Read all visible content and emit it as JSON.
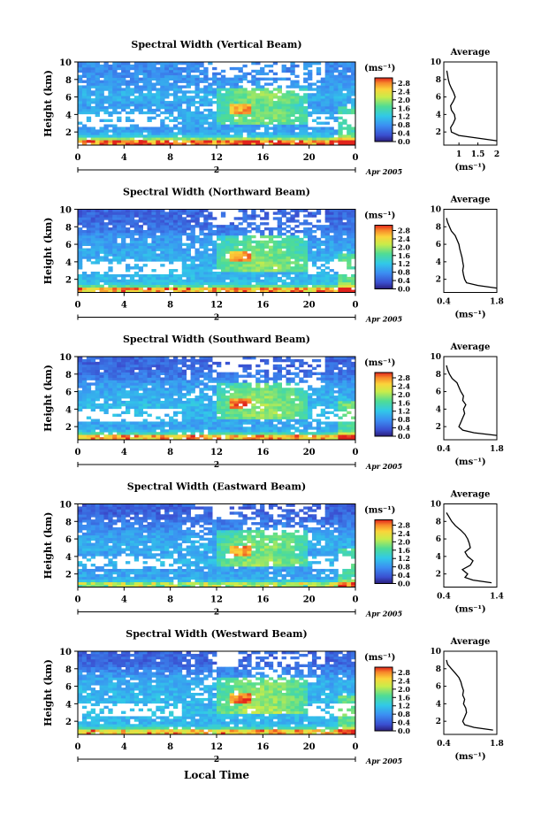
{
  "figure": {
    "xlabel": "Local Time",
    "date_label": "Apr 2005",
    "day_marker": "2",
    "ylabel": "Height (km)",
    "colorbar_unit": "(ms⁻¹)",
    "average_title": "Average",
    "average_xlabel": "(ms⁻¹)",
    "colors": {
      "background": "#ffffff",
      "ink": "#000000",
      "no_data": "#ffffff"
    }
  },
  "chart_data": [
    {
      "type": "heatmap",
      "title": "Spectral Width (Vertical Beam)",
      "xlabel": "",
      "ylabel": "Height (km)",
      "xticks": [
        "0",
        "4",
        "8",
        "12",
        "16",
        "20",
        "0"
      ],
      "xlim": [
        0,
        24
      ],
      "yticks": [
        "2",
        "4",
        "6",
        "8",
        "10"
      ],
      "ylim": [
        0.5,
        10
      ],
      "colorbar": {
        "unit": "(ms⁻¹)",
        "ticks": [
          "2.8",
          "2.4",
          "2.0",
          "1.6",
          "1.2",
          "0.8",
          "0.4",
          "0.0"
        ],
        "range": [
          0.0,
          2.8
        ]
      },
      "average_profile": {
        "title": "Average",
        "xlabel": "(ms⁻¹)",
        "xticks": [
          "1",
          "1.5",
          "2"
        ],
        "xlim": [
          0.6,
          2.0
        ],
        "yticks": [
          "2",
          "4",
          "6",
          "8",
          "10"
        ],
        "ylim": [
          0.5,
          10
        ],
        "height_km": [
          1.0,
          1.3,
          1.6,
          2.0,
          2.5,
          3.0,
          3.5,
          4.0,
          4.5,
          5.0,
          5.5,
          6.0,
          6.5,
          7.0,
          7.5,
          8.0,
          8.5,
          9.0
        ],
        "value": [
          2.0,
          1.5,
          1.0,
          0.8,
          0.78,
          0.85,
          0.9,
          0.88,
          0.8,
          0.78,
          0.85,
          0.9,
          0.86,
          0.8,
          0.75,
          0.72,
          0.7,
          0.68
        ]
      }
    },
    {
      "type": "heatmap",
      "title": "Spectral Width (Northward Beam)",
      "xlabel": "",
      "ylabel": "Height (km)",
      "xticks": [
        "0",
        "4",
        "8",
        "12",
        "16",
        "20",
        "0"
      ],
      "xlim": [
        0,
        24
      ],
      "yticks": [
        "2",
        "4",
        "6",
        "8",
        "10"
      ],
      "ylim": [
        0.5,
        10
      ],
      "colorbar": {
        "unit": "(ms⁻¹)",
        "ticks": [
          "2.8",
          "2.4",
          "2.0",
          "1.6",
          "1.2",
          "0.8",
          "0.4",
          "0.0"
        ],
        "range": [
          0.0,
          2.8
        ]
      },
      "average_profile": {
        "title": "Average",
        "xlabel": "(ms⁻¹)",
        "xticks": [
          "0.4",
          "1.8"
        ],
        "xlim": [
          0.4,
          1.8
        ],
        "yticks": [
          "2",
          "4",
          "6",
          "8",
          "10"
        ],
        "ylim": [
          0.5,
          10
        ],
        "height_km": [
          1.0,
          1.3,
          1.6,
          2.0,
          2.5,
          3.0,
          3.5,
          4.0,
          4.5,
          5.0,
          5.5,
          6.0,
          6.5,
          7.0,
          7.5,
          8.0,
          8.5,
          9.0
        ],
        "value": [
          1.8,
          1.3,
          1.0,
          0.95,
          0.92,
          0.9,
          0.92,
          0.9,
          0.88,
          0.85,
          0.82,
          0.8,
          0.75,
          0.7,
          0.6,
          0.55,
          0.5,
          0.47
        ]
      }
    },
    {
      "type": "heatmap",
      "title": "Spectral Width (Southward Beam)",
      "xlabel": "",
      "ylabel": "Height (km)",
      "xticks": [
        "0",
        "4",
        "8",
        "12",
        "16",
        "20",
        "0"
      ],
      "xlim": [
        0,
        24
      ],
      "yticks": [
        "2",
        "4",
        "6",
        "8",
        "10"
      ],
      "ylim": [
        0.5,
        10
      ],
      "colorbar": {
        "unit": "(ms⁻¹)",
        "ticks": [
          "2.8",
          "2.4",
          "2.0",
          "1.6",
          "1.2",
          "0.8",
          "0.4",
          "0.0"
        ],
        "range": [
          0.0,
          2.8
        ]
      },
      "average_profile": {
        "title": "Average",
        "xlabel": "(ms⁻¹)",
        "xticks": [
          "0.4",
          "1.8"
        ],
        "xlim": [
          0.4,
          1.8
        ],
        "yticks": [
          "2",
          "4",
          "6",
          "8",
          "10"
        ],
        "ylim": [
          0.5,
          10
        ],
        "height_km": [
          1.0,
          1.3,
          1.6,
          2.0,
          2.5,
          3.0,
          3.5,
          4.0,
          4.5,
          5.0,
          5.5,
          6.0,
          6.5,
          7.0,
          7.5,
          8.0,
          8.5,
          9.0
        ],
        "value": [
          1.8,
          1.2,
          0.9,
          0.8,
          0.85,
          0.9,
          0.95,
          0.92,
          0.98,
          0.9,
          0.92,
          0.85,
          0.8,
          0.75,
          0.62,
          0.55,
          0.5,
          0.47
        ]
      }
    },
    {
      "type": "heatmap",
      "title": "Spectral Width (Eastward Beam)",
      "xlabel": "",
      "ylabel": "Height (km)",
      "xticks": [
        "0",
        "4",
        "8",
        "12",
        "16",
        "20",
        "0"
      ],
      "xlim": [
        0,
        24
      ],
      "yticks": [
        "2",
        "4",
        "6",
        "8",
        "10"
      ],
      "ylim": [
        0.5,
        10
      ],
      "colorbar": {
        "unit": "(ms⁻¹)",
        "ticks": [
          "2.8",
          "2.4",
          "2.0",
          "1.6",
          "1.2",
          "0.8",
          "0.4",
          "0.0"
        ],
        "range": [
          0.0,
          2.8
        ]
      },
      "average_profile": {
        "title": "Average",
        "xlabel": "(ms⁻¹)",
        "xticks": [
          "0.4",
          "1.4"
        ],
        "xlim": [
          0.4,
          1.4
        ],
        "yticks": [
          "2",
          "4",
          "6",
          "8",
          "10"
        ],
        "ylim": [
          0.5,
          10
        ],
        "height_km": [
          1.0,
          1.3,
          1.6,
          2.0,
          2.5,
          3.0,
          3.5,
          4.0,
          4.5,
          5.0,
          5.5,
          6.0,
          6.5,
          7.0,
          7.5,
          8.0,
          8.5,
          9.0
        ],
        "value": [
          1.3,
          0.95,
          0.8,
          0.85,
          0.75,
          0.9,
          0.95,
          0.85,
          0.8,
          0.9,
          0.88,
          0.85,
          0.8,
          0.72,
          0.62,
          0.55,
          0.5,
          0.45
        ]
      }
    },
    {
      "type": "heatmap",
      "title": "Spectral Width (Westward Beam)",
      "xlabel": "Local Time",
      "ylabel": "Height (km)",
      "xticks": [
        "0",
        "4",
        "8",
        "12",
        "16",
        "20",
        "0"
      ],
      "xlim": [
        0,
        24
      ],
      "yticks": [
        "2",
        "4",
        "6",
        "8",
        "10"
      ],
      "ylim": [
        0.5,
        10
      ],
      "colorbar": {
        "unit": "(ms⁻¹)",
        "ticks": [
          "2.8",
          "2.4",
          "2.0",
          "1.6",
          "1.2",
          "0.8",
          "0.4",
          "0.0"
        ],
        "range": [
          0.0,
          2.8
        ]
      },
      "average_profile": {
        "title": "Average",
        "xlabel": "(ms⁻¹)",
        "xticks": [
          "0.4",
          "1.8"
        ],
        "xlim": [
          0.4,
          1.8
        ],
        "yticks": [
          "2",
          "4",
          "6",
          "8",
          "10"
        ],
        "ylim": [
          0.5,
          10
        ],
        "height_km": [
          1.0,
          1.3,
          1.6,
          2.0,
          2.5,
          3.0,
          3.5,
          4.0,
          4.5,
          5.0,
          5.5,
          6.0,
          6.5,
          7.0,
          7.5,
          8.0,
          8.5,
          9.0
        ],
        "value": [
          1.7,
          1.2,
          0.95,
          0.9,
          0.95,
          1.0,
          0.98,
          0.92,
          0.95,
          0.9,
          0.92,
          0.88,
          0.85,
          0.8,
          0.7,
          0.6,
          0.5,
          0.47
        ]
      }
    }
  ]
}
